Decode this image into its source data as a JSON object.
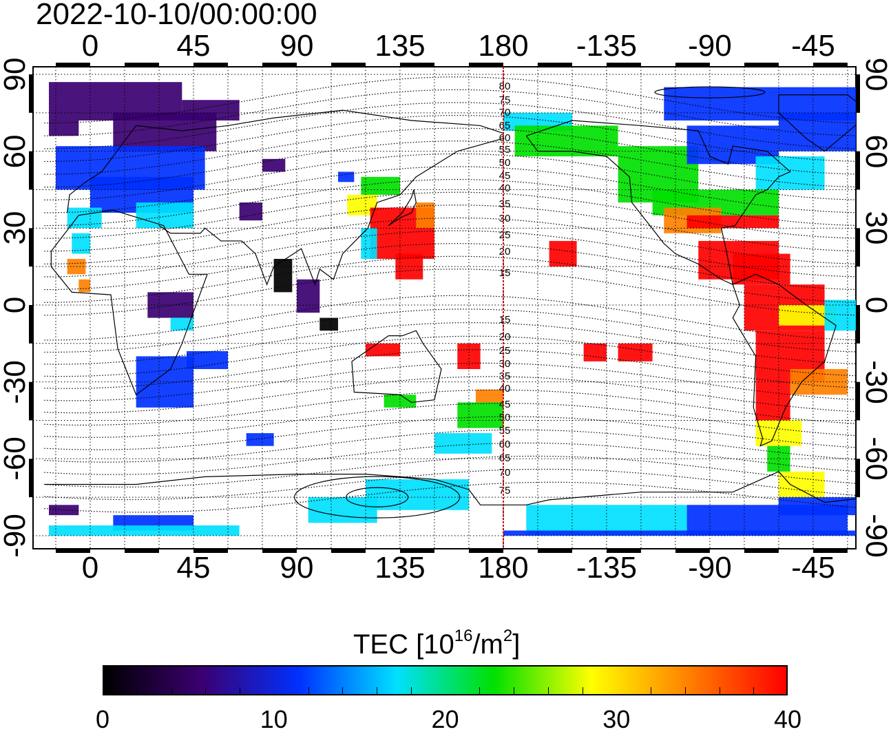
{
  "title": "2022-10-10/00:00:00",
  "map": {
    "top_ticks": [
      "0",
      "45",
      "90",
      "135",
      "180",
      "-135",
      "-90",
      "-45"
    ],
    "bottom_ticks": [
      "0",
      "45",
      "90",
      "135",
      "180",
      "-135",
      "-90",
      "-45"
    ],
    "left_ticks": [
      "90",
      "60",
      "30",
      "0",
      "-30",
      "-60",
      "-90"
    ],
    "right_ticks": [
      "90",
      "60",
      "30",
      "0",
      "-30",
      "-60",
      "-90"
    ],
    "contour_labels": [
      "80",
      "75",
      "70",
      "65",
      "60",
      "55",
      "50",
      "45",
      "40",
      "35",
      "30",
      "25",
      "20",
      "15",
      "15",
      "20",
      "25",
      "30",
      "35",
      "40",
      "45",
      "50",
      "55",
      "60",
      "65",
      "70",
      "75"
    ],
    "meridian_color": "#cc0000"
  },
  "colorbar": {
    "title_main": "TEC  [10",
    "title_exp": "16",
    "title_unit": "/m",
    "title_exp2": "2",
    "title_end": "]",
    "ticks": [
      "0",
      "10",
      "20",
      "30",
      "40"
    ],
    "colors": [
      "#000000",
      "#3a0070",
      "#0030ff",
      "#00e0ff",
      "#00e000",
      "#ffff00",
      "#ff8000",
      "#ff0000"
    ]
  }
}
